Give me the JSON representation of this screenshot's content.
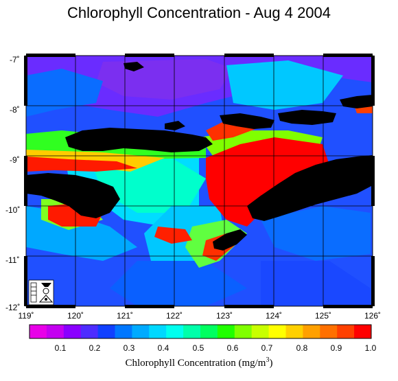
{
  "title": "Chlorophyll Concentration - Aug 4 2004",
  "map": {
    "lon_ticks": [
      "119˚",
      "120˚",
      "121˚",
      "122˚",
      "123˚",
      "124˚",
      "125˚",
      "126˚"
    ],
    "lat_ticks": [
      "-7˚",
      "-8˚",
      "-9˚",
      "-10˚",
      "-11˚",
      "-12˚"
    ],
    "lon_range": [
      119,
      126
    ],
    "lat_range": [
      -7,
      -12
    ],
    "land_color": "#000000",
    "grid_color": "#000000"
  },
  "colorbar": {
    "ticks": [
      "0.1",
      "0.2",
      "0.3",
      "0.4",
      "0.5",
      "0.6",
      "0.7",
      "0.8",
      "0.9",
      "1.0"
    ],
    "label": "Chlorophyll Concentration (mg/m",
    "label_sup": "3",
    "label_end": ")",
    "colors": [
      "#e800e8",
      "#c400f0",
      "#8a00ff",
      "#4d2cff",
      "#1040ff",
      "#0077ff",
      "#00aaff",
      "#00d8ff",
      "#00ffee",
      "#00ffaa",
      "#00ff60",
      "#20ff00",
      "#80ff00",
      "#c8ff00",
      "#ffff00",
      "#ffd000",
      "#ffa000",
      "#ff7000",
      "#ff4000",
      "#ff0000"
    ]
  },
  "logo": {
    "name": "nasa-seawifs-logo"
  }
}
